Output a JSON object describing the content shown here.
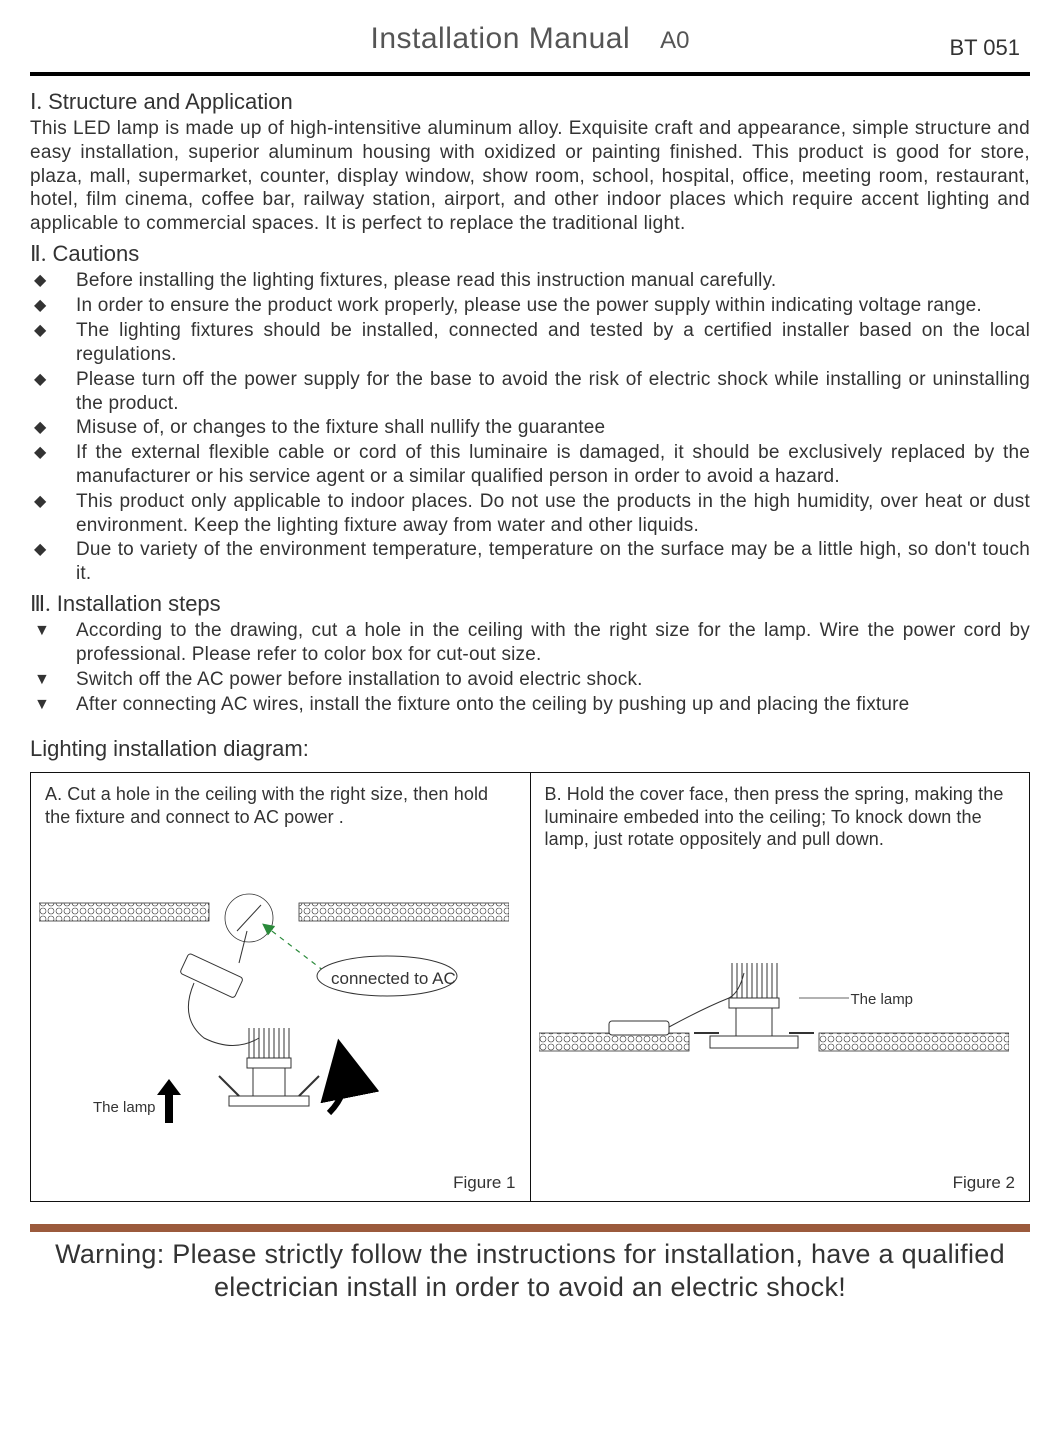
{
  "header": {
    "title": "Installation Manual",
    "revision": "A0",
    "code": "BT 051"
  },
  "section1": {
    "heading_roman": "Ⅰ.",
    "heading_text": "Structure and Application",
    "body": "This LED lamp is made up of high-intensitive aluminum alloy. Exquisite craft and appearance, simple structure and easy installation, superior aluminum housing with oxidized or painting finished. This product is good for store, plaza, mall, supermarket, counter, display window, show room, school, hospital, office, meeting room, restaurant, hotel, film cinema, coffee bar, railway station, airport, and other indoor places which require accent lighting and applicable to commercial spaces. It is perfect to replace the traditional light."
  },
  "section2": {
    "heading_roman": "Ⅱ.",
    "heading_text": "Cautions",
    "items": [
      "Before installing the lighting fixtures, please read this instruction manual carefully.",
      "In order to ensure the product work properly, please use the power supply within indicating voltage range.",
      "The lighting fixtures should be installed, connected and tested by a certified installer based on the local regulations.",
      "Please turn off the power supply for the base to avoid the risk of electric shock while installing or uninstalling the product.",
      "Misuse of, or changes to the fixture shall nullify the guarantee",
      "If the external flexible cable or cord of this luminaire is damaged, it should be exclusively replaced by the manufacturer or his service agent or a similar qualified person in order to avoid a hazard.",
      "This product only applicable to indoor places. Do not use the products in the high humidity, over heat or dust environment. Keep the lighting fixture away from water and other liquids.",
      "Due to variety of the environment temperature, temperature on the surface may be a little high, so don't touch it."
    ]
  },
  "section3": {
    "heading_roman": "Ⅲ.",
    "heading_text": "Installation steps",
    "items": [
      "According to the drawing, cut a hole in the ceiling with the right size for the lamp. Wire the power cord by professional. Please refer to color box for cut-out size.",
      "Switch off the AC power before installation to avoid electric shock.",
      "After connecting AC wires, install the fixture onto the ceiling by pushing up and placing the fixture"
    ]
  },
  "diagram": {
    "title": "Lighting installation diagram:",
    "panelA": {
      "caption": "A. Cut a hole in the ceiling with the right size, then hold the fixture and connect to AC power .",
      "lamp_label": "The lamp",
      "ac_label": "connected to AC",
      "figure": "Figure 1"
    },
    "panelB": {
      "caption": "B. Hold the cover face, then press the spring, making the luminaire embeded into the ceiling; To knock down the lamp, just rotate oppositely and pull down.",
      "lamp_label": "The lamp",
      "figure": "Figure 2"
    }
  },
  "warning": {
    "text": "Warning: Please strictly follow the instructions for installation, have a qualified electrician install in order to avoid an electric shock!",
    "bar_color": "#9b5a3c"
  },
  "colors": {
    "text": "#333333",
    "rule": "#000000",
    "background": "#ffffff"
  }
}
